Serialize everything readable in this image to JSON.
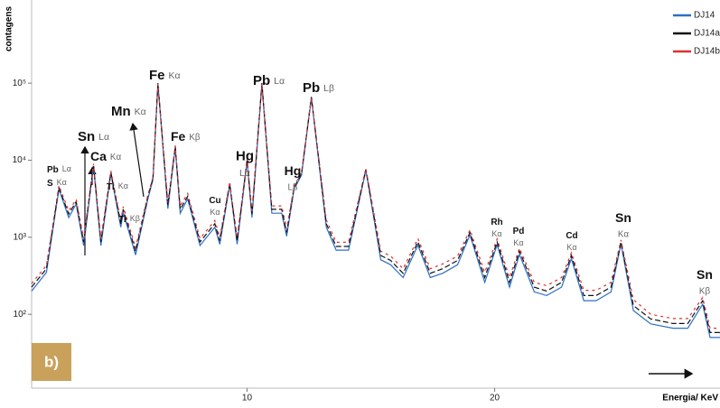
{
  "chart_data": {
    "type": "line",
    "log_y": true,
    "legend": "top-right",
    "y_label": "contagens",
    "x_label": "Energia/ KeV",
    "panel_label": "b)",
    "x": [
      1.3,
      1.9,
      2.4,
      2.8,
      3.1,
      3.4,
      3.8,
      4.1,
      4.5,
      4.9,
      5.0,
      5.5,
      6.0,
      6.2,
      6.4,
      6.8,
      7.1,
      7.3,
      7.6,
      8.1,
      8.7,
      8.9,
      9.3,
      9.6,
      10.0,
      10.2,
      10.6,
      11.0,
      11.4,
      11.6,
      11.9,
      12.2,
      12.6,
      13.2,
      13.6,
      14.1,
      14.8,
      15.4,
      15.8,
      16.3,
      16.9,
      17.4,
      17.9,
      18.5,
      19.0,
      19.6,
      20.1,
      20.6,
      21.0,
      21.6,
      22.1,
      22.7,
      23.1,
      23.6,
      24.1,
      24.7,
      25.1,
      25.6,
      26.3,
      27.2,
      27.8,
      28.4,
      28.7,
      29.1
    ],
    "series": [
      {
        "name": "DJ14",
        "color": "#2a6fc9",
        "values": [
          200,
          350,
          4200,
          1800,
          2700,
          780,
          8400,
          780,
          6700,
          1350,
          2100,
          590,
          3200,
          5600,
          99000,
          2350,
          14500,
          2050,
          3150,
          780,
          1350,
          810,
          4800,
          810,
          9700,
          1800,
          98000,
          2050,
          2050,
          1030,
          4200,
          6400,
          65000,
          1350,
          680,
          680,
          7400,
          510,
          440,
          300,
          790,
          300,
          340,
          440,
          1070,
          260,
          800,
          225,
          600,
          195,
          175,
          225,
          530,
          150,
          150,
          195,
          820,
          112,
          75,
          66,
          66,
          135,
          50,
          50
        ]
      },
      {
        "name": "DJ14a",
        "color": "#111111",
        "values": [
          225,
          390,
          4400,
          2000,
          2900,
          870,
          8700,
          870,
          7000,
          1500,
          2300,
          660,
          3400,
          5800,
          100000,
          2600,
          15000,
          2300,
          3400,
          870,
          1500,
          900,
          5000,
          900,
          10000,
          2000,
          100000,
          2300,
          2300,
          1150,
          4400,
          6700,
          66000,
          1500,
          760,
          760,
          7600,
          580,
          500,
          340,
          870,
          340,
          390,
          500,
          1150,
          300,
          870,
          260,
          660,
          225,
          200,
          260,
          580,
          175,
          175,
          225,
          870,
          130,
          87,
          76,
          76,
          150,
          58,
          58
        ]
      },
      {
        "name": "DJ14b",
        "color": "#e03030",
        "values": [
          250,
          430,
          4700,
          2200,
          3100,
          960,
          9000,
          960,
          7300,
          1650,
          2500,
          730,
          3600,
          6000,
          98000,
          2850,
          15500,
          2550,
          3700,
          960,
          1650,
          1000,
          5200,
          1000,
          10300,
          2200,
          99000,
          2550,
          2550,
          1280,
          4600,
          7000,
          65000,
          1680,
          860,
          860,
          7800,
          660,
          570,
          390,
          960,
          390,
          450,
          570,
          1250,
          350,
          950,
          300,
          720,
          260,
          235,
          300,
          630,
          205,
          205,
          260,
          920,
          155,
          100,
          88,
          88,
          165,
          66,
          66
        ]
      }
    ],
    "xlim": [
      1.3,
      29.1
    ],
    "xticks": [
      10,
      20
    ],
    "ylim": [
      11,
      1200000
    ],
    "yticks": [
      {
        "value": 100,
        "label": "10²"
      },
      {
        "value": 1000,
        "label": "10³"
      },
      {
        "value": 10000,
        "label": "10⁴"
      },
      {
        "value": 100000,
        "label": "10⁵"
      }
    ],
    "annotations": [
      {
        "element": "Pb",
        "line": "Lα"
      },
      {
        "element": "S",
        "line": "Kα"
      },
      {
        "element": "Sn",
        "line": "Lα"
      },
      {
        "element": "Ca",
        "line": "Kα"
      },
      {
        "element": "Mn",
        "line": "Kα"
      },
      {
        "element": "Fe",
        "line": "Kα"
      },
      {
        "element": "Fe",
        "line": "Kβ"
      },
      {
        "element": "Ti",
        "line": "Kα"
      },
      {
        "element": "Ti",
        "line": "Kβ"
      },
      {
        "element": "Cu",
        "line": "Kα"
      },
      {
        "element": "Hg",
        "line": "Lα"
      },
      {
        "element": "Hg",
        "line": "Lβ"
      },
      {
        "element": "Pb",
        "line": "Lα"
      },
      {
        "element": "Pb",
        "line": "Lβ"
      },
      {
        "element": "Rh",
        "line": "Kα"
      },
      {
        "element": "Pd",
        "line": "Kα"
      },
      {
        "element": "Cd",
        "line": "Kα"
      },
      {
        "element": "Sn",
        "line": "Kα"
      },
      {
        "element": "Sn",
        "line": "Kβ"
      }
    ]
  }
}
